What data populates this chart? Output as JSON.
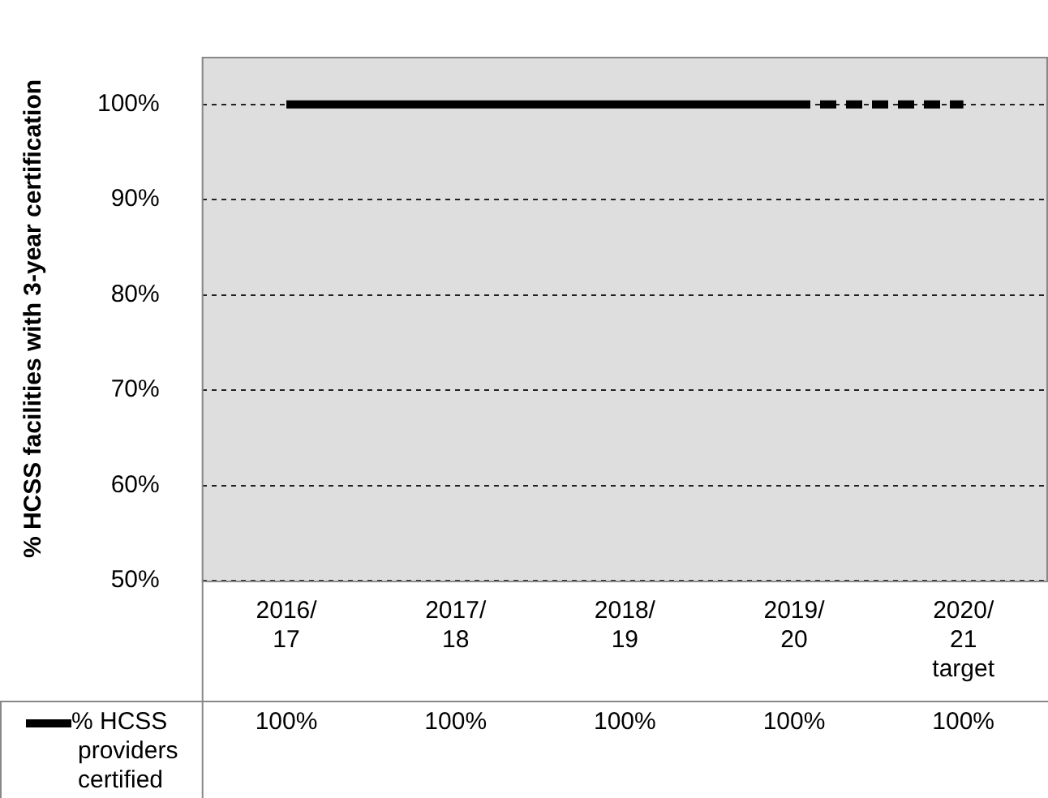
{
  "chart_data": {
    "type": "line",
    "ylabel": "% HCSS facilities with 3-year certification",
    "categories": [
      "2016/\n17",
      "2017/\n18",
      "2018/\n19",
      "2019/\n20",
      "2020/\n21\ntarget"
    ],
    "series": [
      {
        "name": "% HCSS providers certified",
        "color": "#000000",
        "line_style": [
          "solid",
          "solid",
          "solid",
          "dashed"
        ],
        "values": [
          100,
          100,
          100,
          100,
          100
        ],
        "value_labels": [
          "100%",
          "100%",
          "100%",
          "100%",
          "100%"
        ]
      }
    ],
    "ylim": [
      50,
      105
    ],
    "yticks": [
      {
        "value": 50,
        "label": "50%"
      },
      {
        "value": 60,
        "label": "60%"
      },
      {
        "value": 70,
        "label": "70%"
      },
      {
        "value": 80,
        "label": "80%"
      },
      {
        "value": 90,
        "label": "90%"
      },
      {
        "value": 100,
        "label": "100%"
      }
    ],
    "grid": "y",
    "marker": "none",
    "legend": "bottom"
  }
}
